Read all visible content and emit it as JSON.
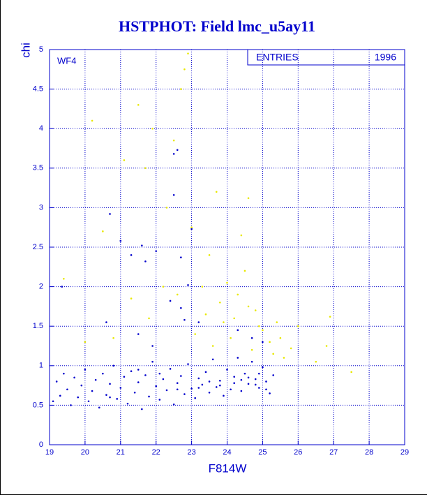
{
  "chart_data": {
    "type": "scatter",
    "title": "HSTPHOT: Field lmc_u5ay11",
    "x_label": "F814W",
    "y_label": "chi",
    "panel_label": "WF4",
    "stats": {
      "label": "ENTRIES",
      "value": 1996
    },
    "xlim": [
      19,
      29
    ],
    "ylim": [
      0,
      5
    ],
    "xticks": [
      19,
      20,
      21,
      22,
      23,
      24,
      25,
      26,
      27,
      28,
      29
    ],
    "yticks": [
      0,
      0.5,
      1,
      1.5,
      2,
      2.5,
      3,
      3.5,
      4,
      4.5,
      5
    ],
    "grid": true,
    "series": [
      {
        "color": "#0000cc",
        "x": [
          19.1,
          19.2,
          19.3,
          19.4,
          19.5,
          19.6,
          19.7,
          19.8,
          19.9,
          20.0,
          20.1,
          20.2,
          20.3,
          20.4,
          20.5,
          20.6,
          20.7,
          20.8,
          20.9,
          21.0,
          21.1,
          21.2,
          21.3,
          21.4,
          21.5,
          21.6,
          21.7,
          21.8,
          21.9,
          22.0,
          22.1,
          22.2,
          22.3,
          22.4,
          22.5,
          22.6,
          22.7,
          22.8,
          22.9,
          23.0,
          23.1,
          23.2,
          23.3,
          23.4,
          23.5,
          23.6,
          23.7,
          23.8,
          23.9,
          24.0,
          24.1,
          24.2,
          24.3,
          24.4,
          24.5,
          24.6,
          24.7,
          24.8,
          24.9,
          25.0,
          25.1,
          25.2,
          25.3,
          23.5,
          23.8,
          24.2,
          24.6,
          24.9,
          25.1,
          23.2,
          22.6,
          22.1,
          21.5,
          20.7,
          24.4,
          24.8,
          19.35,
          20.7,
          21.0,
          21.3,
          21.6,
          21.7,
          22.0,
          22.5,
          22.6,
          22.5,
          23.0,
          22.7,
          22.9,
          22.4,
          22.7,
          21.5,
          22.8,
          23.2,
          24.3,
          24.7,
          25.0,
          20.6,
          21.9
        ],
        "values": [
          0.55,
          0.8,
          0.62,
          0.9,
          0.7,
          0.5,
          0.85,
          0.6,
          0.75,
          0.95,
          0.55,
          0.68,
          0.82,
          0.47,
          0.9,
          0.63,
          0.77,
          1.0,
          0.58,
          0.72,
          0.86,
          0.52,
          0.93,
          0.66,
          0.79,
          0.45,
          0.88,
          0.61,
          1.05,
          0.74,
          0.57,
          0.83,
          0.69,
          0.96,
          0.51,
          0.78,
          0.87,
          0.64,
          1.02,
          0.71,
          0.59,
          0.84,
          0.76,
          0.92,
          0.66,
          1.08,
          0.73,
          0.81,
          0.62,
          0.95,
          0.7,
          0.86,
          1.1,
          0.68,
          0.9,
          0.77,
          1.05,
          0.83,
          0.72,
          0.98,
          0.8,
          0.65,
          0.88,
          0.8,
          0.75,
          0.78,
          0.85,
          0.9,
          0.7,
          0.72,
          0.7,
          0.9,
          0.95,
          0.6,
          0.82,
          0.76,
          2.0,
          2.92,
          2.58,
          2.4,
          2.52,
          2.32,
          2.45,
          3.68,
          3.73,
          3.16,
          2.73,
          2.37,
          2.02,
          1.82,
          1.73,
          1.4,
          1.58,
          1.55,
          1.45,
          1.35,
          1.3,
          1.55,
          1.25
        ]
      },
      {
        "color": "#e8e800",
        "x": [
          19.4,
          20.2,
          20.5,
          21.1,
          21.5,
          21.7,
          21.9,
          22.3,
          22.5,
          22.7,
          22.8,
          22.9,
          23.0,
          23.3,
          23.5,
          23.7,
          23.8,
          24.0,
          24.2,
          24.4,
          24.5,
          24.6,
          24.8,
          25.0,
          25.2,
          25.4,
          25.6,
          25.8,
          26.0,
          26.5,
          26.8,
          26.9,
          27.5,
          23.1,
          23.4,
          23.6,
          24.1,
          24.3,
          24.7,
          24.9,
          25.3,
          22.2,
          21.8,
          20.8,
          21.3,
          23.9,
          24.6,
          25.5,
          20.0,
          22.6
        ],
        "values": [
          2.1,
          4.1,
          2.7,
          3.6,
          4.3,
          3.5,
          4.0,
          3.0,
          3.85,
          4.5,
          4.75,
          4.95,
          2.75,
          2.0,
          2.4,
          3.2,
          1.8,
          2.05,
          1.6,
          2.65,
          2.2,
          3.12,
          1.7,
          1.45,
          1.3,
          1.55,
          1.1,
          1.22,
          1.5,
          1.05,
          1.25,
          1.62,
          0.92,
          1.4,
          1.65,
          1.25,
          1.35,
          1.9,
          1.2,
          1.5,
          1.15,
          2.0,
          1.6,
          1.35,
          1.85,
          1.55,
          1.75,
          1.35,
          1.3,
          1.9
        ]
      }
    ]
  }
}
